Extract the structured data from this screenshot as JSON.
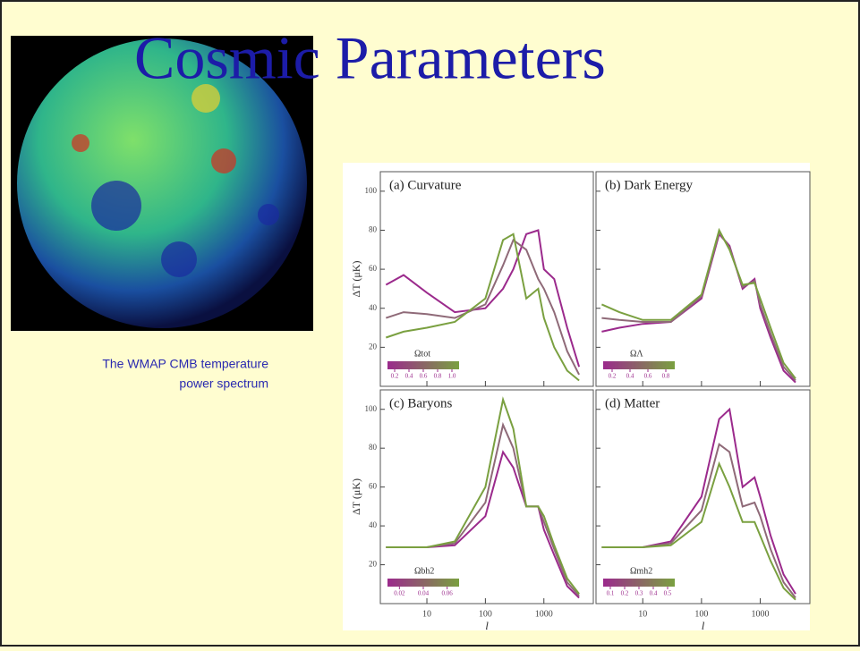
{
  "slide": {
    "title": "Cosmic Parameters",
    "caption": [
      "The WMAP CMB temperature",
      "power spectrum"
    ]
  },
  "chart_data": [
    {
      "type": "line",
      "title": "(a) Curvature",
      "ylabel": "ΔT (μK)",
      "xlabel": null,
      "ytick_labels": true,
      "xtick_labels": false,
      "x": [
        2,
        4,
        10,
        30,
        100,
        200,
        300,
        500,
        800,
        1000,
        1500,
        2500,
        4000
      ],
      "series": [
        {
          "color": "#9b2a8c",
          "values": [
            52,
            57,
            48,
            38,
            40,
            50,
            60,
            78,
            80,
            60,
            55,
            30,
            10
          ]
        },
        {
          "color": "#8f6a78",
          "values": [
            35,
            38,
            37,
            35,
            42,
            62,
            75,
            70,
            55,
            50,
            38,
            18,
            6
          ]
        },
        {
          "color": "#7aa040",
          "values": [
            25,
            28,
            30,
            33,
            45,
            75,
            78,
            45,
            50,
            35,
            20,
            8,
            3
          ]
        }
      ],
      "xlim": [
        1.6,
        7000
      ],
      "ylim": [
        0,
        110
      ],
      "xticks": [
        10,
        100,
        1000
      ],
      "yticks": [
        20,
        40,
        60,
        80,
        100
      ],
      "log_x": true,
      "colorbar": {
        "label": "Ωtot",
        "clim": [
          0.1,
          1.1
        ],
        "ticks": [
          0.2,
          0.4,
          0.6,
          0.8,
          {
            "value": 1,
            "label": "1.0"
          }
        ]
      }
    },
    {
      "type": "line",
      "title": "(b) Dark Energy",
      "ylabel": null,
      "xlabel": null,
      "ytick_labels": false,
      "xtick_labels": false,
      "x": [
        2,
        4,
        10,
        30,
        100,
        200,
        300,
        500,
        800,
        1000,
        1500,
        2500,
        4000
      ],
      "series": [
        {
          "color": "#9b2a8c",
          "values": [
            28,
            30,
            32,
            33,
            45,
            78,
            72,
            50,
            55,
            40,
            25,
            8,
            2
          ]
        },
        {
          "color": "#8f6a78",
          "values": [
            35,
            34,
            33,
            33,
            46,
            79,
            71,
            51,
            54,
            42,
            27,
            10,
            3
          ]
        },
        {
          "color": "#7aa040",
          "values": [
            42,
            38,
            34,
            34,
            47,
            80,
            70,
            52,
            53,
            45,
            30,
            12,
            4
          ]
        }
      ],
      "xlim": [
        1.6,
        7000
      ],
      "ylim": [
        0,
        110
      ],
      "xticks": [
        10,
        100,
        1000
      ],
      "yticks": [
        20,
        40,
        60,
        80,
        100
      ],
      "log_x": true,
      "colorbar": {
        "label": "ΩΛ",
        "clim": [
          0.1,
          0.9
        ],
        "ticks": [
          0.2,
          0.4,
          0.6,
          0.8
        ]
      }
    },
    {
      "type": "line",
      "title": "(c) Baryons",
      "ylabel": "ΔT (μK)",
      "xlabel": "l",
      "ytick_labels": true,
      "xtick_labels": true,
      "x": [
        2,
        4,
        10,
        30,
        100,
        200,
        300,
        500,
        800,
        1000,
        1500,
        2500,
        4000
      ],
      "series": [
        {
          "color": "#9b2a8c",
          "values": [
            29,
            29,
            29,
            30,
            45,
            78,
            70,
            50,
            50,
            38,
            25,
            9,
            3
          ]
        },
        {
          "color": "#8f6a78",
          "values": [
            29,
            29,
            29,
            31,
            52,
            92,
            80,
            50,
            50,
            42,
            28,
            11,
            4
          ]
        },
        {
          "color": "#7aa040",
          "values": [
            29,
            29,
            29,
            32,
            60,
            105,
            90,
            50,
            50,
            45,
            30,
            13,
            5
          ]
        }
      ],
      "xlim": [
        1.6,
        7000
      ],
      "ylim": [
        0,
        110
      ],
      "xticks": [
        10,
        100,
        1000
      ],
      "yticks": [
        20,
        40,
        60,
        80,
        100
      ],
      "log_x": true,
      "colorbar": {
        "label": "Ωbh2",
        "clim": [
          0.01,
          0.07
        ],
        "ticks": [
          0.02,
          0.04,
          0.06
        ]
      }
    },
    {
      "type": "line",
      "title": "(d) Matter",
      "ylabel": null,
      "xlabel": "l",
      "ytick_labels": false,
      "xtick_labels": true,
      "x": [
        2,
        4,
        10,
        30,
        100,
        200,
        300,
        500,
        800,
        1000,
        1500,
        2500,
        4000
      ],
      "series": [
        {
          "color": "#9b2a8c",
          "values": [
            29,
            29,
            29,
            32,
            55,
            95,
            100,
            60,
            65,
            55,
            35,
            15,
            5
          ]
        },
        {
          "color": "#8f6a78",
          "values": [
            29,
            29,
            29,
            31,
            48,
            82,
            78,
            50,
            52,
            45,
            28,
            11,
            3
          ]
        },
        {
          "color": "#7aa040",
          "values": [
            29,
            29,
            29,
            30,
            42,
            72,
            60,
            42,
            42,
            35,
            22,
            8,
            2
          ]
        }
      ],
      "xlim": [
        1.6,
        7000
      ],
      "ylim": [
        0,
        110
      ],
      "xticks": [
        10,
        100,
        1000
      ],
      "yticks": [
        20,
        40,
        60,
        80,
        100
      ],
      "log_x": true,
      "colorbar": {
        "label": "Ωmh2",
        "clim": [
          0.05,
          0.55
        ],
        "ticks": [
          0.1,
          0.2,
          0.3,
          0.4,
          0.5
        ]
      }
    }
  ]
}
